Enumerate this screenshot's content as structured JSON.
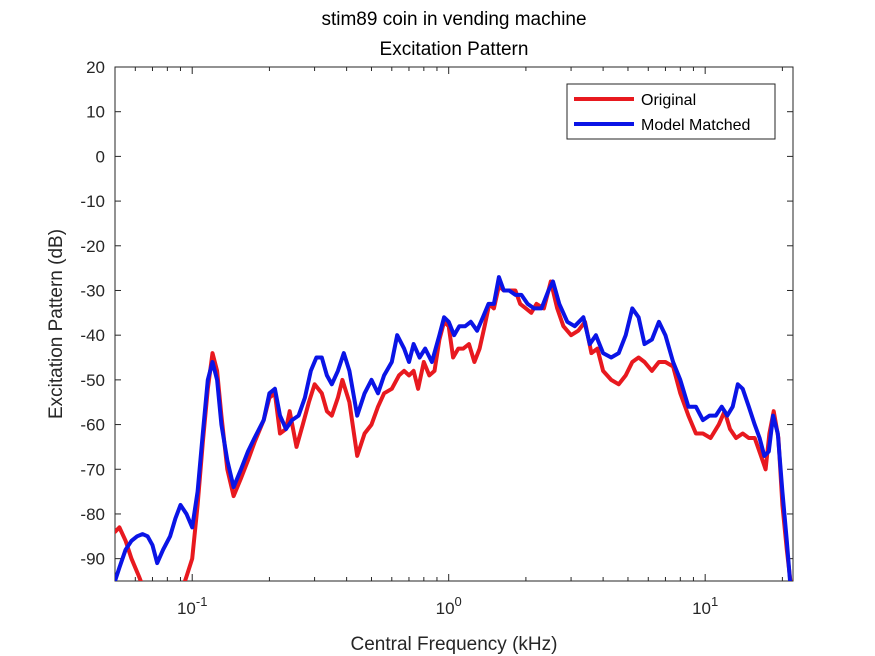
{
  "chart_data": {
    "type": "line",
    "title": "stim89 coin in vending machine",
    "subtitle": "Excitation Pattern",
    "xlabel": "Central Frequency (kHz)",
    "ylabel": "Excitation Pattern (dB)",
    "xscale": "log",
    "xlim": [
      0.05,
      22
    ],
    "ylim": [
      -95,
      20
    ],
    "yticks": [
      20,
      10,
      0,
      -10,
      -20,
      -30,
      -40,
      -50,
      -60,
      -70,
      -80,
      -90
    ],
    "xticks": [
      {
        "value": 0.1,
        "base": "10",
        "exp": "-1"
      },
      {
        "value": 1,
        "base": "10",
        "exp": "0"
      },
      {
        "value": 10,
        "base": "10",
        "exp": "1"
      }
    ],
    "grid": false,
    "legend_position": "top-right",
    "series": [
      {
        "name": "Original",
        "color": "#e8191f",
        "points": [
          [
            0.05,
            -84
          ],
          [
            0.052,
            -83
          ],
          [
            0.055,
            -86
          ],
          [
            0.058,
            -90
          ],
          [
            0.062,
            -94
          ],
          [
            0.065,
            -97
          ],
          [
            0.07,
            -100
          ],
          [
            0.08,
            -100
          ],
          [
            0.09,
            -98
          ],
          [
            0.095,
            -94
          ],
          [
            0.1,
            -90
          ],
          [
            0.105,
            -78
          ],
          [
            0.11,
            -64
          ],
          [
            0.115,
            -52
          ],
          [
            0.12,
            -44
          ],
          [
            0.125,
            -48
          ],
          [
            0.13,
            -58
          ],
          [
            0.137,
            -70
          ],
          [
            0.145,
            -76
          ],
          [
            0.155,
            -72
          ],
          [
            0.165,
            -68
          ],
          [
            0.175,
            -64
          ],
          [
            0.19,
            -59
          ],
          [
            0.2,
            -54
          ],
          [
            0.21,
            -53
          ],
          [
            0.22,
            -62
          ],
          [
            0.232,
            -61
          ],
          [
            0.24,
            -57
          ],
          [
            0.255,
            -65
          ],
          [
            0.27,
            -60
          ],
          [
            0.285,
            -55
          ],
          [
            0.3,
            -51
          ],
          [
            0.32,
            -53
          ],
          [
            0.335,
            -57
          ],
          [
            0.35,
            -58
          ],
          [
            0.37,
            -54
          ],
          [
            0.385,
            -50
          ],
          [
            0.41,
            -55
          ],
          [
            0.44,
            -67
          ],
          [
            0.47,
            -62
          ],
          [
            0.5,
            -60
          ],
          [
            0.53,
            -56
          ],
          [
            0.56,
            -53
          ],
          [
            0.6,
            -52
          ],
          [
            0.64,
            -49
          ],
          [
            0.67,
            -48
          ],
          [
            0.7,
            -49
          ],
          [
            0.73,
            -48
          ],
          [
            0.76,
            -52
          ],
          [
            0.8,
            -46
          ],
          [
            0.84,
            -49
          ],
          [
            0.88,
            -48
          ],
          [
            0.92,
            -41
          ],
          [
            0.96,
            -37
          ],
          [
            1.0,
            -38
          ],
          [
            1.04,
            -45
          ],
          [
            1.09,
            -43
          ],
          [
            1.14,
            -43
          ],
          [
            1.2,
            -42
          ],
          [
            1.26,
            -46
          ],
          [
            1.32,
            -43
          ],
          [
            1.38,
            -38
          ],
          [
            1.44,
            -33
          ],
          [
            1.5,
            -34
          ],
          [
            1.57,
            -29
          ],
          [
            1.64,
            -30
          ],
          [
            1.72,
            -30
          ],
          [
            1.82,
            -30
          ],
          [
            1.9,
            -33
          ],
          [
            2.0,
            -34
          ],
          [
            2.1,
            -35
          ],
          [
            2.2,
            -33
          ],
          [
            2.35,
            -34
          ],
          [
            2.5,
            -28
          ],
          [
            2.65,
            -34
          ],
          [
            2.8,
            -38
          ],
          [
            3.0,
            -40
          ],
          [
            3.2,
            -39
          ],
          [
            3.4,
            -37
          ],
          [
            3.6,
            -44
          ],
          [
            3.8,
            -43
          ],
          [
            4.0,
            -48
          ],
          [
            4.3,
            -50
          ],
          [
            4.6,
            -51
          ],
          [
            4.9,
            -49
          ],
          [
            5.2,
            -46
          ],
          [
            5.5,
            -45
          ],
          [
            5.8,
            -46
          ],
          [
            6.2,
            -48
          ],
          [
            6.6,
            -46
          ],
          [
            7.0,
            -46
          ],
          [
            7.5,
            -47
          ],
          [
            8.0,
            -53
          ],
          [
            8.6,
            -58
          ],
          [
            9.2,
            -62
          ],
          [
            9.8,
            -62
          ],
          [
            10.5,
            -63
          ],
          [
            11.3,
            -60
          ],
          [
            11.9,
            -57
          ],
          [
            12.5,
            -61
          ],
          [
            13.2,
            -63
          ],
          [
            14.0,
            -62
          ],
          [
            14.8,
            -63
          ],
          [
            15.6,
            -63
          ],
          [
            16.5,
            -67
          ],
          [
            17.2,
            -70
          ],
          [
            17.8,
            -62
          ],
          [
            18.5,
            -57
          ],
          [
            19.3,
            -63
          ],
          [
            20.0,
            -78
          ],
          [
            20.8,
            -88
          ],
          [
            21.5,
            -95
          ]
        ]
      },
      {
        "name": "Model Matched",
        "color": "#0a14e6",
        "points": [
          [
            0.05,
            -95
          ],
          [
            0.052,
            -92
          ],
          [
            0.055,
            -88
          ],
          [
            0.058,
            -86
          ],
          [
            0.061,
            -85
          ],
          [
            0.064,
            -84.5
          ],
          [
            0.067,
            -85
          ],
          [
            0.07,
            -87
          ],
          [
            0.073,
            -91
          ],
          [
            0.077,
            -88
          ],
          [
            0.082,
            -85
          ],
          [
            0.086,
            -81
          ],
          [
            0.09,
            -78
          ],
          [
            0.095,
            -80
          ],
          [
            0.1,
            -83
          ],
          [
            0.105,
            -75
          ],
          [
            0.11,
            -62
          ],
          [
            0.115,
            -50
          ],
          [
            0.12,
            -46
          ],
          [
            0.125,
            -50
          ],
          [
            0.13,
            -60
          ],
          [
            0.137,
            -68
          ],
          [
            0.145,
            -74
          ],
          [
            0.155,
            -70
          ],
          [
            0.165,
            -66
          ],
          [
            0.175,
            -63
          ],
          [
            0.19,
            -59
          ],
          [
            0.2,
            -53
          ],
          [
            0.21,
            -52
          ],
          [
            0.22,
            -58
          ],
          [
            0.232,
            -61
          ],
          [
            0.245,
            -59
          ],
          [
            0.26,
            -58
          ],
          [
            0.275,
            -54
          ],
          [
            0.29,
            -48
          ],
          [
            0.305,
            -45
          ],
          [
            0.32,
            -45
          ],
          [
            0.335,
            -49
          ],
          [
            0.35,
            -51
          ],
          [
            0.37,
            -48
          ],
          [
            0.39,
            -44
          ],
          [
            0.41,
            -48
          ],
          [
            0.44,
            -58
          ],
          [
            0.47,
            -53
          ],
          [
            0.5,
            -50
          ],
          [
            0.53,
            -53
          ],
          [
            0.56,
            -49
          ],
          [
            0.6,
            -46
          ],
          [
            0.63,
            -40
          ],
          [
            0.67,
            -43
          ],
          [
            0.7,
            -46
          ],
          [
            0.73,
            -42
          ],
          [
            0.77,
            -45
          ],
          [
            0.81,
            -43
          ],
          [
            0.86,
            -46
          ],
          [
            0.92,
            -40
          ],
          [
            0.96,
            -36
          ],
          [
            1.0,
            -37
          ],
          [
            1.05,
            -40
          ],
          [
            1.1,
            -38
          ],
          [
            1.16,
            -38
          ],
          [
            1.22,
            -37
          ],
          [
            1.29,
            -39
          ],
          [
            1.36,
            -36
          ],
          [
            1.43,
            -33
          ],
          [
            1.5,
            -33
          ],
          [
            1.57,
            -27
          ],
          [
            1.64,
            -30
          ],
          [
            1.72,
            -30
          ],
          [
            1.82,
            -31
          ],
          [
            1.92,
            -31
          ],
          [
            2.03,
            -33
          ],
          [
            2.15,
            -34
          ],
          [
            2.3,
            -34
          ],
          [
            2.45,
            -30
          ],
          [
            2.55,
            -28
          ],
          [
            2.7,
            -33
          ],
          [
            2.9,
            -37
          ],
          [
            3.1,
            -38
          ],
          [
            3.35,
            -36
          ],
          [
            3.55,
            -42
          ],
          [
            3.75,
            -40
          ],
          [
            4.0,
            -44
          ],
          [
            4.3,
            -45
          ],
          [
            4.6,
            -44
          ],
          [
            4.9,
            -40
          ],
          [
            5.2,
            -34
          ],
          [
            5.5,
            -36
          ],
          [
            5.8,
            -42
          ],
          [
            6.2,
            -41
          ],
          [
            6.6,
            -37
          ],
          [
            7.0,
            -40
          ],
          [
            7.5,
            -46
          ],
          [
            8.0,
            -50
          ],
          [
            8.6,
            -56
          ],
          [
            9.2,
            -56
          ],
          [
            9.8,
            -59
          ],
          [
            10.4,
            -58
          ],
          [
            11.0,
            -58
          ],
          [
            11.6,
            -56
          ],
          [
            12.2,
            -58
          ],
          [
            12.8,
            -56
          ],
          [
            13.4,
            -51
          ],
          [
            14.0,
            -52
          ],
          [
            14.8,
            -56
          ],
          [
            15.6,
            -60
          ],
          [
            16.3,
            -63
          ],
          [
            17.0,
            -67
          ],
          [
            17.7,
            -66
          ],
          [
            18.4,
            -58
          ],
          [
            19.2,
            -62
          ],
          [
            20.0,
            -75
          ],
          [
            20.8,
            -86
          ],
          [
            21.5,
            -96
          ]
        ]
      }
    ]
  }
}
